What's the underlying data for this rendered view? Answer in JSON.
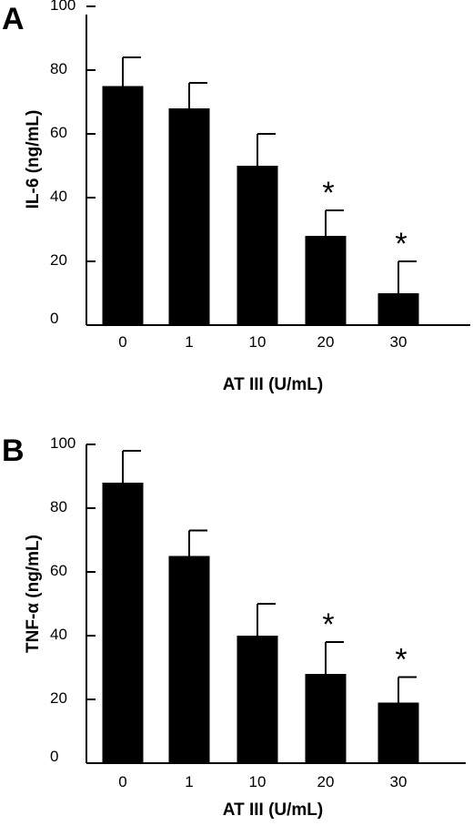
{
  "chart_data": [
    {
      "type": "bar",
      "panel_label": "A",
      "categories": [
        "0",
        "1",
        "10",
        "20",
        "30"
      ],
      "series": [
        {
          "values": [
            75,
            68,
            50,
            28,
            10
          ],
          "error": [
            9,
            8,
            10,
            8,
            10
          ]
        }
      ],
      "significance": [
        "",
        "",
        "",
        "*",
        "*"
      ],
      "xlabel": "AT III (U/mL)",
      "ylabel": "IL-6 (ng/mL)",
      "ylim": [
        0,
        100
      ],
      "yticks": [
        "0",
        "20",
        "40",
        "60",
        "80",
        "100"
      ],
      "grid": false,
      "bar_color": "#000000"
    },
    {
      "type": "bar",
      "panel_label": "B",
      "categories": [
        "0",
        "1",
        "10",
        "20",
        "30"
      ],
      "series": [
        {
          "values": [
            88,
            65,
            40,
            28,
            19
          ],
          "error": [
            10,
            8,
            10,
            10,
            8
          ]
        }
      ],
      "significance": [
        "",
        "",
        "",
        "*",
        "*"
      ],
      "xlabel": "AT III (U/mL)",
      "ylabel": "TNF-α (ng/mL)",
      "ylim": [
        0,
        100
      ],
      "yticks": [
        "0",
        "20",
        "40",
        "60",
        "80",
        "100"
      ],
      "grid": false,
      "bar_color": "#000000"
    }
  ]
}
